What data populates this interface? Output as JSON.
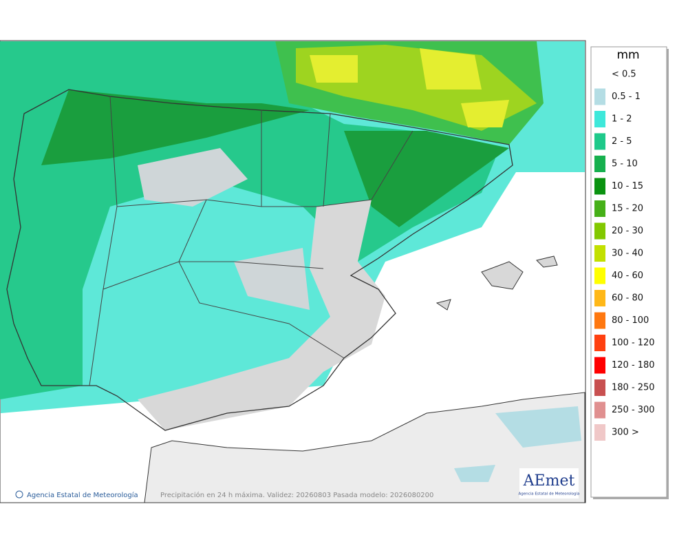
{
  "map": {
    "footer_credit": "Agencia Estatal de Meteorología",
    "footer_caption": "Precipitación en 24 h máxima. Validez: 20260803 Pasada modelo: 2026080200",
    "logo": "AEmet",
    "logo_subtitle": "Agencia Estatal de Meteorología"
  },
  "legend": {
    "title": "mm",
    "items": [
      {
        "label": "< 0.5",
        "color": "#ffffff"
      },
      {
        "label": "0.5 - 1",
        "color": "#b4dde4"
      },
      {
        "label": "1 - 2",
        "color": "#3ee8da"
      },
      {
        "label": "2 - 5",
        "color": "#1ec98a"
      },
      {
        "label": "5 - 10",
        "color": "#16b04e"
      },
      {
        "label": "10 - 15",
        "color": "#0a9210"
      },
      {
        "label": "15 - 20",
        "color": "#46b018"
      },
      {
        "label": "20 - 30",
        "color": "#82c800"
      },
      {
        "label": "30 - 40",
        "color": "#c2e000"
      },
      {
        "label": "40 - 60",
        "color": "#ffff00"
      },
      {
        "label": "60 - 80",
        "color": "#ffb818"
      },
      {
        "label": "80 - 100",
        "color": "#ff7810"
      },
      {
        "label": "100 - 120",
        "color": "#ff4010"
      },
      {
        "label": "120 - 180",
        "color": "#ff0000"
      },
      {
        "label": "180 - 250",
        "color": "#c85050"
      },
      {
        "label": "250 - 300",
        "color": "#e09090"
      },
      {
        "label": "300 >",
        "color": "#f0c8c8"
      }
    ]
  }
}
